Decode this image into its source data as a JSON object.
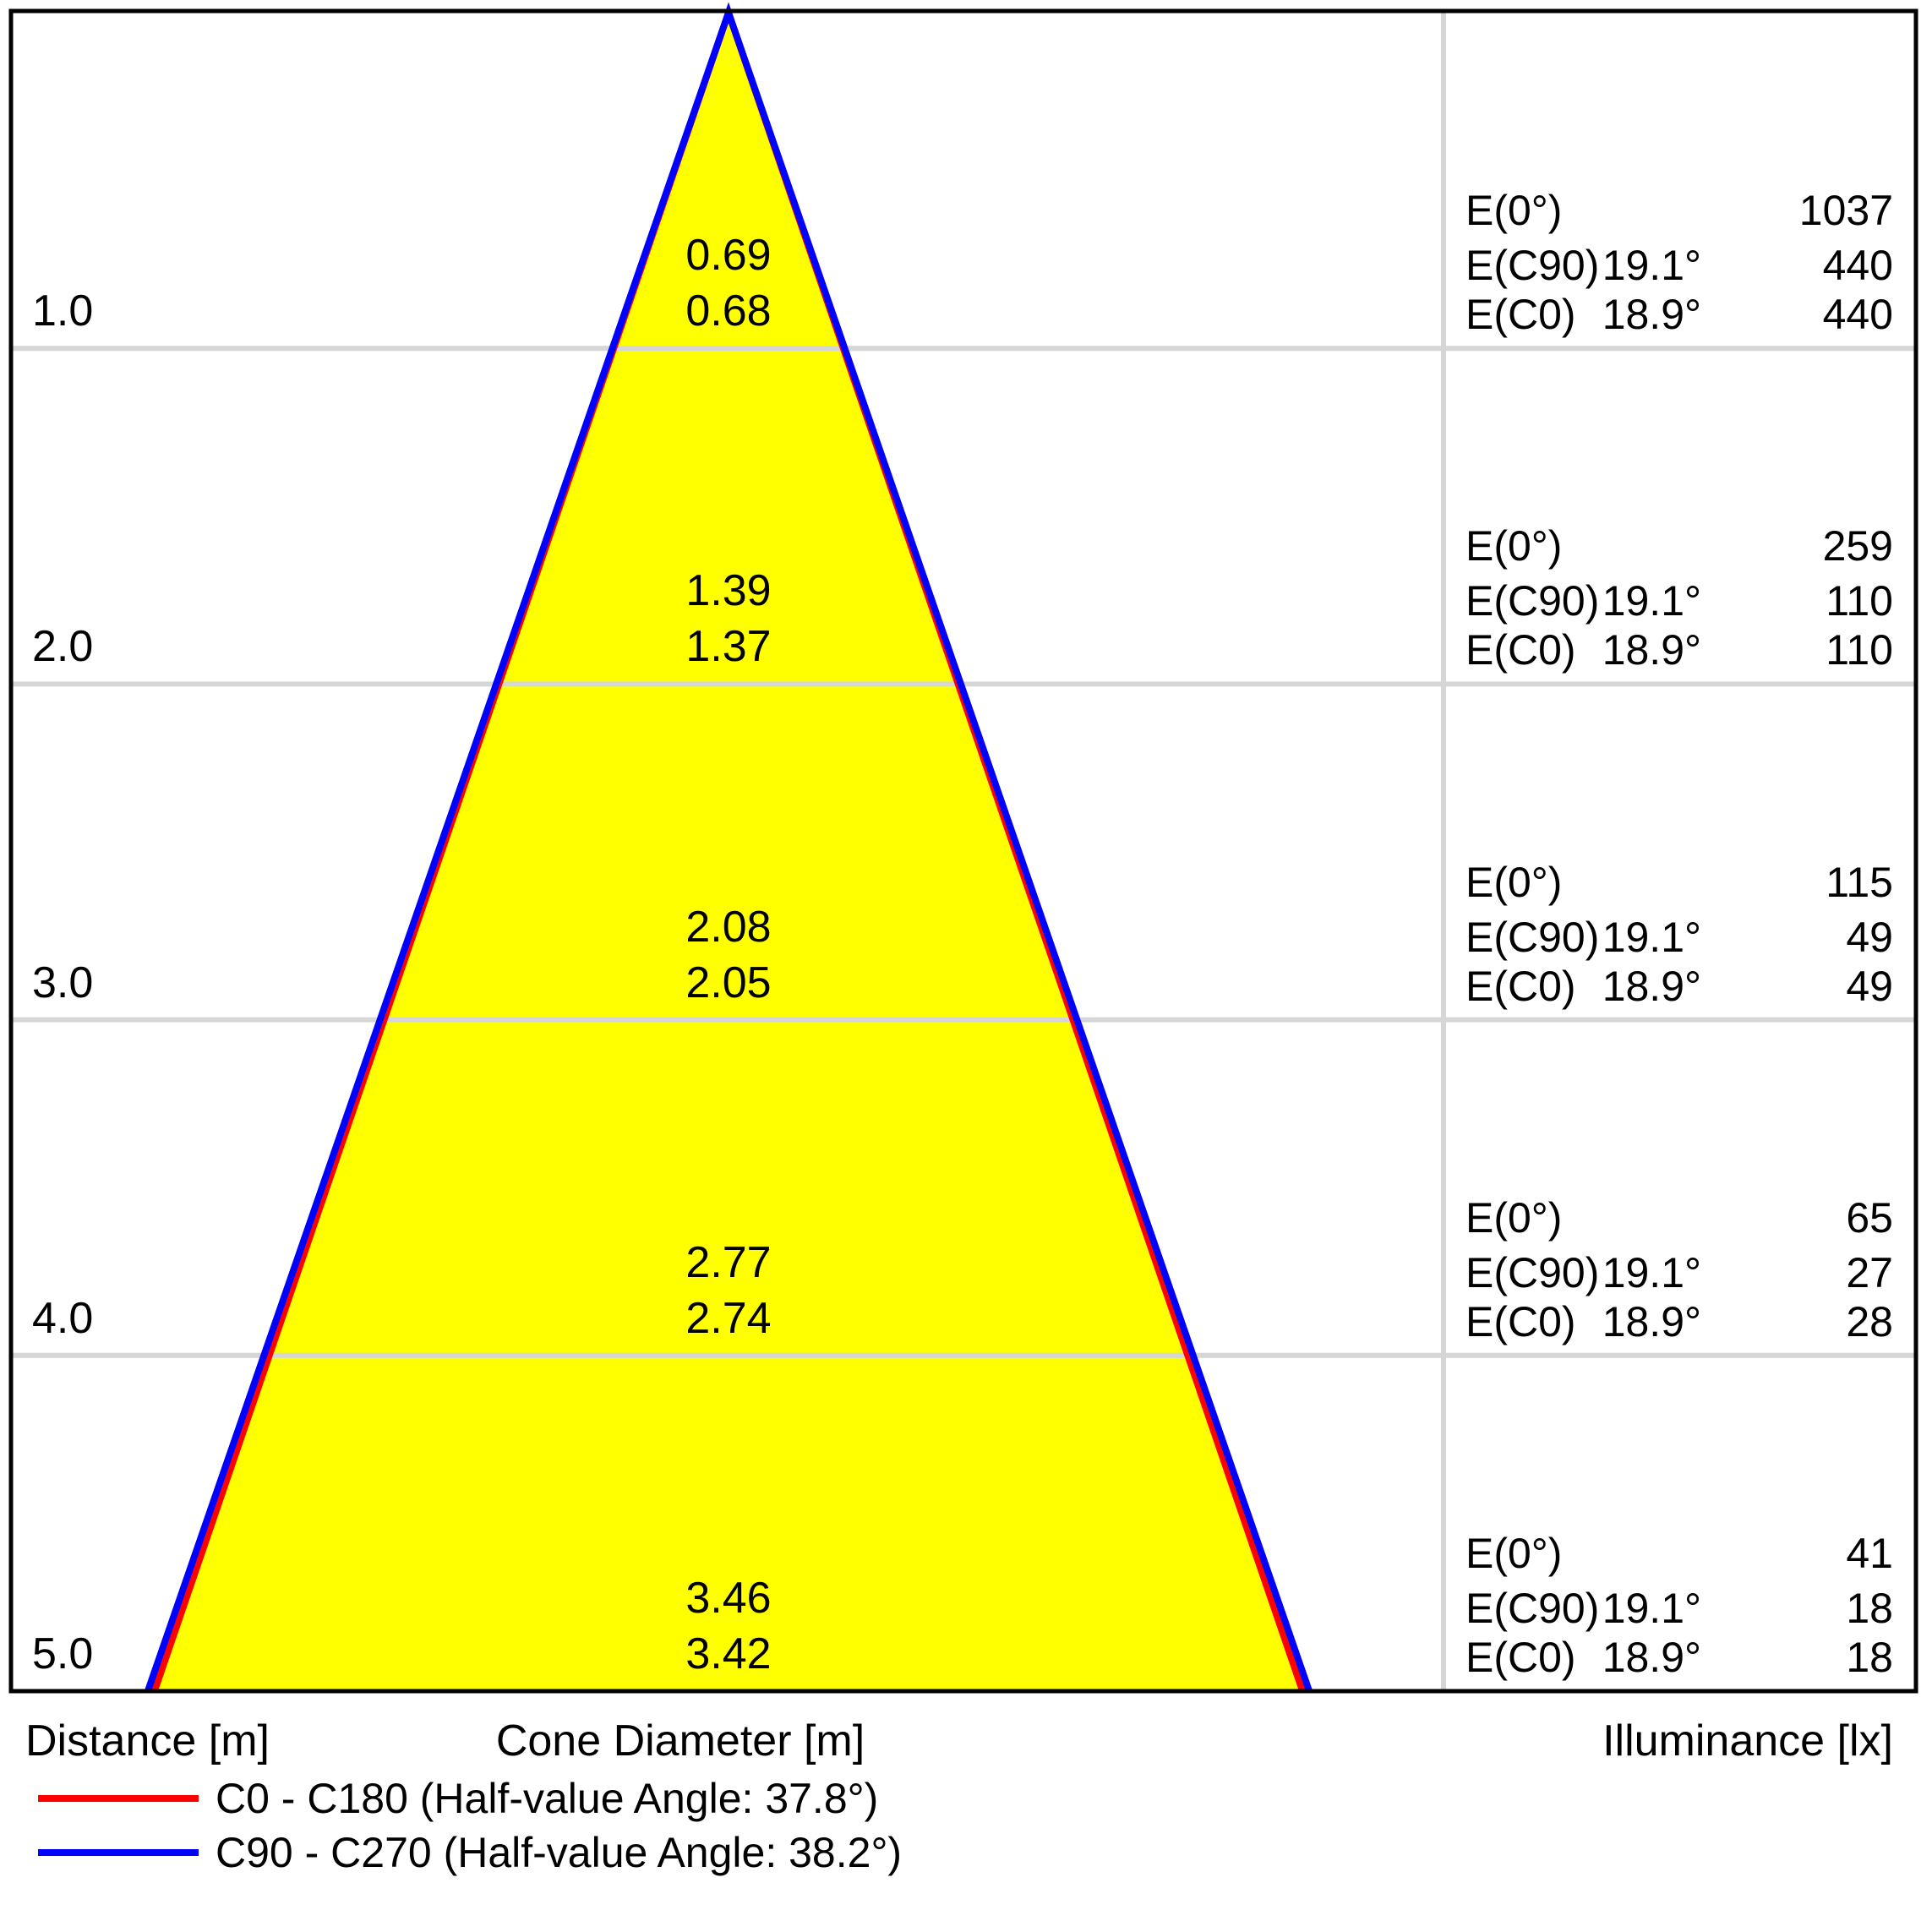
{
  "colors": {
    "cone_fill": "#FFFF00",
    "c0_line": "#FF0000",
    "c90_line": "#0000FF",
    "grid": "#D6D6D6",
    "border": "#000000"
  },
  "footer": {
    "distance_label": "Distance [m]",
    "cone_diameter_label": "Cone Diameter [m]",
    "illuminance_label": "Illuminance [lx]"
  },
  "legend": [
    {
      "name": "c0-c180",
      "color": "#FF0000",
      "label": "C0 - C180 (Half-value Angle: 37.8°)"
    },
    {
      "name": "c90-c270",
      "color": "#0000FF",
      "label": "C90 - C270 (Half-value Angle: 38.2°)"
    }
  ],
  "rows": [
    {
      "distance": "1.0",
      "cone_diameter_c90": "0.69",
      "cone_diameter_c0": "0.68",
      "e0_label": "E(0°)",
      "e0_value": "1037",
      "ec90_label": "E(C90)",
      "ec90_angle": "19.1°",
      "ec90_value": "440",
      "ec0_label": "E(C0)",
      "ec0_angle": "18.9°",
      "ec0_value": "440"
    },
    {
      "distance": "2.0",
      "cone_diameter_c90": "1.39",
      "cone_diameter_c0": "1.37",
      "e0_label": "E(0°)",
      "e0_value": "259",
      "ec90_label": "E(C90)",
      "ec90_angle": "19.1°",
      "ec90_value": "110",
      "ec0_label": "E(C0)",
      "ec0_angle": "18.9°",
      "ec0_value": "110"
    },
    {
      "distance": "3.0",
      "cone_diameter_c90": "2.08",
      "cone_diameter_c0": "2.05",
      "e0_label": "E(0°)",
      "e0_value": "115",
      "ec90_label": "E(C90)",
      "ec90_angle": "19.1°",
      "ec90_value": "49",
      "ec0_label": "E(C0)",
      "ec0_angle": "18.9°",
      "ec0_value": "49"
    },
    {
      "distance": "4.0",
      "cone_diameter_c90": "2.77",
      "cone_diameter_c0": "2.74",
      "e0_label": "E(0°)",
      "e0_value": "65",
      "ec90_label": "E(C90)",
      "ec90_angle": "19.1°",
      "ec90_value": "27",
      "ec0_label": "E(C0)",
      "ec0_angle": "18.9°",
      "ec0_value": "28"
    },
    {
      "distance": "5.0",
      "cone_diameter_c90": "3.46",
      "cone_diameter_c0": "3.42",
      "e0_label": "E(0°)",
      "e0_value": "41",
      "ec90_label": "E(C90)",
      "ec90_angle": "19.1°",
      "ec90_value": "18",
      "ec0_label": "E(C0)",
      "ec0_angle": "18.9°",
      "ec0_value": "18"
    }
  ],
  "chart_data": [
    {
      "type": "line",
      "title": "Light cone diagram (beam spread over distance)",
      "xlabel": "Distance [m]",
      "ylabel": "Cone Diameter [m]",
      "x": [
        1.0,
        2.0,
        3.0,
        4.0,
        5.0
      ],
      "series": [
        {
          "name": "C0 - C180 (Half-value Angle: 37.8°)",
          "color": "#FF0000",
          "values": [
            0.68,
            1.37,
            2.05,
            2.74,
            3.42
          ]
        },
        {
          "name": "C90 - C270 (Half-value Angle: 38.2°)",
          "color": "#0000FF",
          "values": [
            0.69,
            1.39,
            2.08,
            2.77,
            3.46
          ]
        }
      ],
      "grid": true,
      "legend_position": "bottom",
      "xlim": [
        0,
        5
      ],
      "annotations": "yellow filled cone, apex at distance 0"
    },
    {
      "type": "table",
      "title": "Illuminance [lx]",
      "columns": [
        "Distance [m]",
        "E(0°)",
        "E(C90) @ 19.1°",
        "E(C0) @ 18.9°"
      ],
      "rows": [
        [
          "1.0",
          1037,
          440,
          440
        ],
        [
          "2.0",
          259,
          110,
          110
        ],
        [
          "3.0",
          115,
          49,
          49
        ],
        [
          "4.0",
          65,
          27,
          28
        ],
        [
          "5.0",
          41,
          18,
          18
        ]
      ]
    }
  ]
}
